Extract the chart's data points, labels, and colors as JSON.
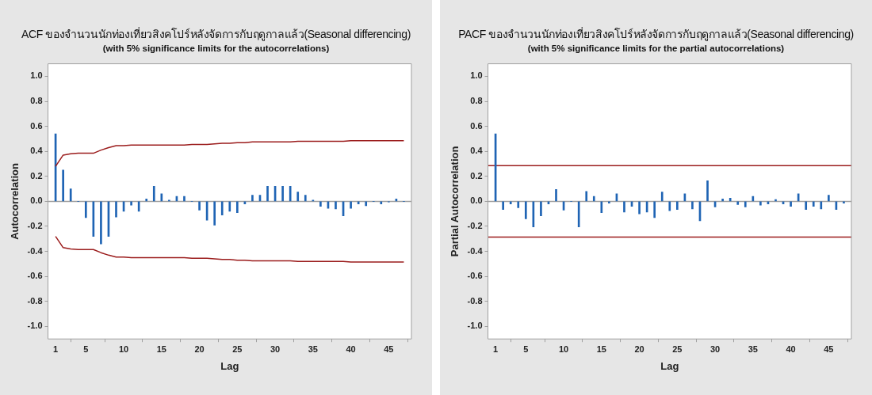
{
  "chart_data": [
    {
      "type": "bar",
      "title": "ACF ของจำนวนนักท่องเที่ยวสิงคโปร์หลังจัดการกับฤดูกาลแล้ว(Seasonal differencing)",
      "subtitle": "(with 5% significance limits for the autocorrelations)",
      "xlabel": "Lag",
      "ylabel": "Autocorrelation",
      "x": [
        1,
        2,
        3,
        4,
        5,
        6,
        7,
        8,
        9,
        10,
        11,
        12,
        13,
        14,
        15,
        16,
        17,
        18,
        19,
        20,
        21,
        22,
        23,
        24,
        25,
        26,
        27,
        28,
        29,
        30,
        31,
        32,
        33,
        34,
        35,
        36,
        37,
        38,
        39,
        40,
        41,
        42,
        43,
        44,
        45,
        46,
        47
      ],
      "series": [
        {
          "color": "#1f64b4",
          "values": [
            0.54,
            0.25,
            0.1,
            0,
            -0.13,
            -0.28,
            -0.34,
            -0.28,
            -0.125,
            -0.08,
            -0.03,
            -0.08,
            0.02,
            0.12,
            0.06,
            0.01,
            0.04,
            0.04,
            0,
            -0.07,
            -0.15,
            -0.19,
            -0.11,
            -0.08,
            -0.09,
            -0.02,
            0.05,
            0.05,
            0.12,
            0.12,
            0.12,
            0.12,
            0.075,
            0.05,
            0.01,
            -0.04,
            -0.055,
            -0.06,
            -0.115,
            -0.055,
            -0.02,
            -0.035,
            0,
            -0.02,
            -0.005,
            0.02,
            0
          ]
        },
        {
          "type": "line",
          "color": "#9b1c1c",
          "values": [
            0.28,
            0.37,
            0.38,
            0.385,
            0.385,
            0.385,
            0.41,
            0.43,
            0.445,
            0.445,
            0.45,
            0.45,
            0.45,
            0.45,
            0.45,
            0.45,
            0.45,
            0.45,
            0.455,
            0.455,
            0.455,
            0.46,
            0.465,
            0.465,
            0.47,
            0.47,
            0.475,
            0.475,
            0.475,
            0.475,
            0.475,
            0.475,
            0.48,
            0.48,
            0.48,
            0.48,
            0.48,
            0.48,
            0.48,
            0.485,
            0.485,
            0.485,
            0.485,
            0.485,
            0.485,
            0.485,
            0.485
          ]
        },
        {
          "type": "line",
          "color": "#9b1c1c",
          "values": [
            -0.28,
            -0.37,
            -0.38,
            -0.385,
            -0.385,
            -0.385,
            -0.41,
            -0.43,
            -0.445,
            -0.445,
            -0.45,
            -0.45,
            -0.45,
            -0.45,
            -0.45,
            -0.45,
            -0.45,
            -0.45,
            -0.455,
            -0.455,
            -0.455,
            -0.46,
            -0.465,
            -0.465,
            -0.47,
            -0.47,
            -0.475,
            -0.475,
            -0.475,
            -0.475,
            -0.475,
            -0.475,
            -0.48,
            -0.48,
            -0.48,
            -0.48,
            -0.48,
            -0.48,
            -0.48,
            -0.485,
            -0.485,
            -0.485,
            -0.485,
            -0.485,
            -0.485,
            -0.485,
            -0.485
          ]
        }
      ],
      "xlim": [
        0,
        48
      ],
      "xticks": [
        1,
        5,
        10,
        15,
        20,
        25,
        30,
        35,
        40,
        45
      ],
      "ylim": [
        -1.1,
        1.1
      ],
      "yticks": [
        {
          "value": -1,
          "label": "-1.0"
        },
        {
          "value": -0.8,
          "label": "-0.8"
        },
        {
          "value": -0.6,
          "label": "-0.6"
        },
        {
          "value": -0.4,
          "label": "-0.4"
        },
        {
          "value": -0.2,
          "label": "-0.2"
        },
        {
          "value": 0,
          "label": "0.0"
        },
        {
          "value": 0.2,
          "label": "0.2"
        },
        {
          "value": 0.4,
          "label": "0.4"
        },
        {
          "value": 0.6,
          "label": "0.6"
        },
        {
          "value": 0.8,
          "label": "0.8"
        },
        {
          "value": 1,
          "label": "1.0"
        }
      ],
      "ref_lines": [
        {
          "axis": "y",
          "value": 0,
          "color": "#a0a0a0"
        }
      ],
      "grid": false,
      "legend": false,
      "marker": "none",
      "line_style": "solid"
    },
    {
      "type": "bar",
      "title": "PACF ของจำนวนนักท่องเที่ยวสิงคโปร์หลังจัดการกับฤดูกาลแล้ว(Seasonal differencing)",
      "subtitle": "(with 5% significance limits for the partial autocorrelations)",
      "xlabel": "Lag",
      "ylabel": "Partial Autocorrelation",
      "x": [
        1,
        2,
        3,
        4,
        5,
        6,
        7,
        8,
        9,
        10,
        11,
        12,
        13,
        14,
        15,
        16,
        17,
        18,
        19,
        20,
        21,
        22,
        23,
        24,
        25,
        26,
        27,
        28,
        29,
        30,
        31,
        32,
        33,
        34,
        35,
        36,
        37,
        38,
        39,
        40,
        41,
        42,
        43,
        44,
        45,
        46,
        47
      ],
      "series": [
        {
          "color": "#1f64b4",
          "values": [
            0.54,
            -0.065,
            -0.02,
            -0.05,
            -0.14,
            -0.205,
            -0.115,
            -0.02,
            0.095,
            -0.07,
            0,
            -0.205,
            0.08,
            0.04,
            -0.09,
            -0.015,
            0.06,
            -0.085,
            -0.04,
            -0.1,
            -0.085,
            -0.13,
            0.075,
            -0.075,
            -0.065,
            0.06,
            -0.06,
            -0.155,
            0.165,
            -0.045,
            0.02,
            0.025,
            -0.025,
            -0.045,
            0.04,
            -0.03,
            -0.02,
            0.015,
            -0.02,
            -0.04,
            0.06,
            -0.065,
            -0.04,
            -0.06,
            0.05,
            -0.065,
            -0.015
          ]
        }
      ],
      "xlim": [
        0,
        48
      ],
      "xticks": [
        1,
        5,
        10,
        15,
        20,
        25,
        30,
        35,
        40,
        45
      ],
      "ylim": [
        -1.1,
        1.1
      ],
      "yticks": [
        {
          "value": -1,
          "label": "-1.0"
        },
        {
          "value": -0.8,
          "label": "-0.8"
        },
        {
          "value": -0.6,
          "label": "-0.6"
        },
        {
          "value": -0.4,
          "label": "-0.4"
        },
        {
          "value": -0.2,
          "label": "-0.2"
        },
        {
          "value": 0,
          "label": "0.0"
        },
        {
          "value": 0.2,
          "label": "0.2"
        },
        {
          "value": 0.4,
          "label": "0.4"
        },
        {
          "value": 0.6,
          "label": "0.6"
        },
        {
          "value": 0.8,
          "label": "0.8"
        },
        {
          "value": 1,
          "label": "1.0"
        }
      ],
      "ref_lines": [
        {
          "axis": "y",
          "value": 0,
          "color": "#a0a0a0"
        },
        {
          "axis": "y",
          "value": 0.285,
          "color": "#9b1c1c"
        },
        {
          "axis": "y",
          "value": -0.285,
          "color": "#9b1c1c"
        }
      ],
      "grid": false,
      "legend": false
    }
  ]
}
